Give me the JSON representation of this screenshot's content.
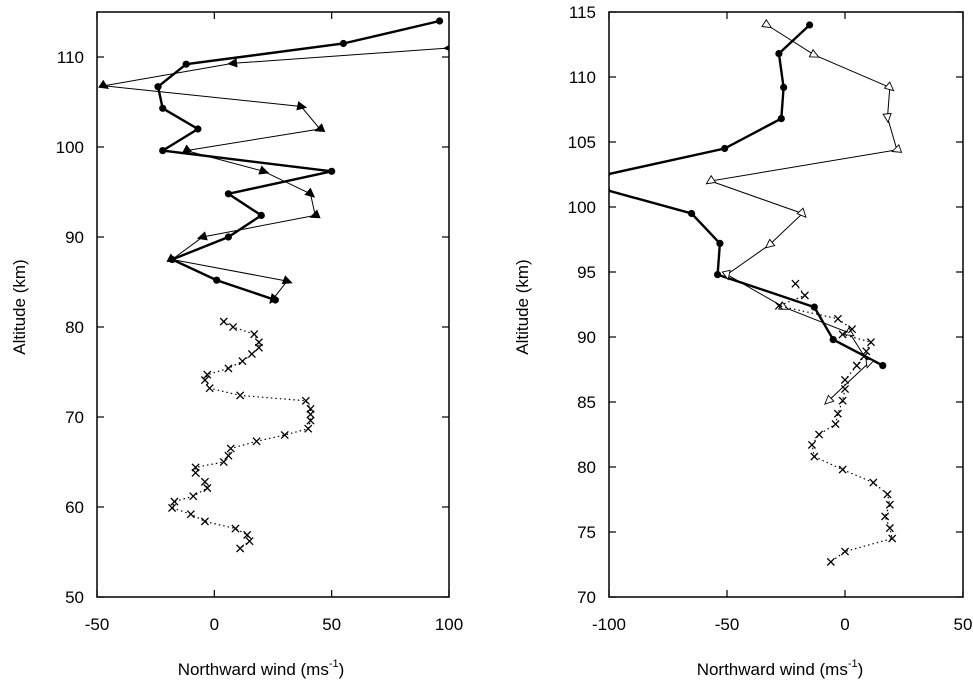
{
  "chart_data": [
    {
      "type": "line",
      "xlabel_text": "Northward wind (ms",
      "xlabel_sup": "-1",
      "xlabel_close": ")",
      "ylabel": "Altitude (km)",
      "xlim": [
        -50,
        100
      ],
      "ylim": [
        50,
        115
      ],
      "xticks": [
        -50,
        0,
        50,
        100
      ],
      "yticks": [
        50,
        60,
        70,
        80,
        90,
        100,
        110
      ],
      "grid": false,
      "series": [
        {
          "marker": "dot",
          "style": "thick",
          "points": [
            [
              96,
              114
            ],
            [
              55,
              111.5
            ],
            [
              -12,
              109.2
            ],
            [
              -24,
              106.7
            ],
            [
              -22,
              104.3
            ],
            [
              -7,
              102
            ],
            [
              -22,
              99.6
            ],
            [
              50,
              97.3
            ],
            [
              6,
              94.8
            ],
            [
              20,
              92.4
            ],
            [
              6,
              90
            ],
            [
              -18,
              87.5
            ],
            [
              1,
              85.2
            ],
            [
              26,
              83
            ]
          ]
        },
        {
          "marker": "triangle-filled",
          "style": "thin",
          "points": [
            [
              100,
              111
            ],
            [
              8,
              109.3
            ],
            [
              -47,
              106.8
            ],
            [
              37,
              104.5
            ],
            [
              45,
              102
            ],
            [
              -12,
              99.6
            ],
            [
              21,
              97.3
            ],
            [
              41,
              94.8
            ],
            [
              43,
              92.4
            ],
            [
              -5,
              90
            ],
            [
              -18,
              87.5
            ],
            [
              31,
              85.1
            ],
            [
              25,
              83.1
            ]
          ]
        },
        {
          "marker": "x",
          "style": "dotted",
          "points": [
            [
              4,
              80.6
            ],
            [
              8,
              80
            ],
            [
              17,
              79.2
            ],
            [
              19,
              78.3
            ],
            [
              19,
              77.7
            ],
            [
              16,
              77
            ],
            [
              12,
              76.2
            ],
            [
              6,
              75.4
            ],
            [
              -3,
              74.7
            ],
            [
              -4,
              74.1
            ],
            [
              -2,
              73.2
            ],
            [
              11,
              72.4
            ],
            [
              39,
              71.8
            ],
            [
              41,
              70.9
            ],
            [
              41,
              70.3
            ],
            [
              41,
              69.6
            ],
            [
              40,
              68.7
            ],
            [
              30,
              68
            ],
            [
              18,
              67.3
            ],
            [
              7,
              66.5
            ],
            [
              6,
              65.7
            ],
            [
              4,
              65
            ],
            [
              -8,
              64.4
            ],
            [
              -8,
              63.8
            ],
            [
              -4,
              62.8
            ],
            [
              -3,
              62.1
            ],
            [
              -9,
              61.2
            ],
            [
              -17,
              60.6
            ],
            [
              -18,
              59.9
            ],
            [
              -10,
              59.2
            ],
            [
              -4,
              58.4
            ],
            [
              9,
              57.6
            ],
            [
              14,
              56.9
            ],
            [
              15,
              56.2
            ],
            [
              11,
              55.4
            ]
          ]
        }
      ]
    },
    {
      "type": "line",
      "xlabel_text": "Northward wind (ms",
      "xlabel_sup": "-1",
      "xlabel_close": ")",
      "ylabel": "Altitude (km)",
      "xlim": [
        -100,
        50
      ],
      "ylim": [
        70,
        115
      ],
      "xticks": [
        -100,
        -50,
        0,
        50
      ],
      "yticks": [
        70,
        75,
        80,
        85,
        90,
        95,
        100,
        105,
        110,
        115
      ],
      "grid": false,
      "series": [
        {
          "marker": "dot",
          "style": "thick",
          "points": [
            [
              -15,
              114
            ],
            [
              -28,
              111.8
            ],
            [
              -26,
              109.2
            ],
            [
              -27,
              106.8
            ],
            [
              -51,
              104.5
            ],
            [
              -101,
              102.5
            ],
            [
              -101,
              101.3
            ],
            [
              -65,
              99.5
            ],
            [
              -53,
              97.2
            ],
            [
              -54,
              94.8
            ],
            [
              -13,
              92.3
            ],
            [
              -5,
              89.8
            ],
            [
              16,
              87.8
            ]
          ]
        },
        {
          "marker": "triangle-open",
          "style": "thin",
          "points": [
            [
              -33,
              114
            ],
            [
              -13,
              111.7
            ],
            [
              19,
              109.2
            ],
            [
              18,
              106.9
            ],
            [
              22,
              104.4
            ],
            [
              -57,
              102
            ],
            [
              -18,
              99.5
            ],
            [
              -32,
              97.1
            ],
            [
              -50,
              94.8
            ],
            [
              -26,
              92.3
            ],
            [
              2,
              90.3
            ],
            [
              10,
              88
            ],
            [
              -7,
              85.1
            ]
          ]
        },
        {
          "marker": "x",
          "style": "dotted",
          "points": [
            [
              -21,
              94.1
            ],
            [
              -17,
              93.2
            ],
            [
              -28,
              92.4
            ],
            [
              -3,
              91.4
            ],
            [
              3,
              90.6
            ],
            [
              -1,
              90.2
            ],
            [
              11,
              89.6
            ],
            [
              9,
              88.9
            ],
            [
              8,
              88.5
            ],
            [
              5,
              87.8
            ],
            [
              0,
              86.7
            ],
            [
              0,
              86
            ],
            [
              -1,
              85.1
            ],
            [
              -3,
              84.1
            ],
            [
              -4,
              83.3
            ],
            [
              -11,
              82.5
            ],
            [
              -14,
              81.7
            ],
            [
              -13,
              80.8
            ],
            [
              -1,
              79.8
            ],
            [
              12,
              78.8
            ],
            [
              18,
              77.9
            ],
            [
              19,
              77.1
            ],
            [
              17,
              76.2
            ],
            [
              19,
              75.3
            ],
            [
              20,
              74.5
            ],
            [
              0,
              73.5
            ],
            [
              -6,
              72.7
            ]
          ]
        }
      ]
    }
  ]
}
